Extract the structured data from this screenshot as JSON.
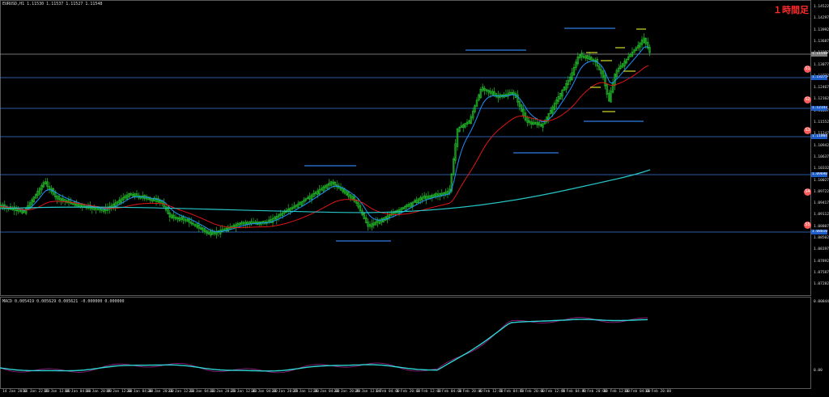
{
  "header": {
    "symbol_info": "EURUSD,H1  1.11530 1.11537 1.11527 1.11548",
    "macd_info": "MACD 0.005419 0.005629 0.005621 -0.000000 0.000000"
  },
  "badge": "１時間足",
  "colors": {
    "candle": "#22c02a",
    "ma_fast": "#1e90ff",
    "ma_mid": "#e01515",
    "ma_slow": "#26c6c6",
    "levels": "#3a78e0",
    "current_line": "#9a9a9a",
    "annotations": "#2f7de6",
    "annotations_yellow": "#d4e02a",
    "macd_main": "#2fd6d6",
    "macd_signal": "#a0208a",
    "circles": "#ff5a5a"
  },
  "circle_markers": [
    "S1",
    "S2",
    "S3",
    "S4",
    "S5"
  ],
  "price_scale": {
    "labels": [
      "1.14522",
      "1.14297",
      "1.13992",
      "1.13687",
      "1.13382",
      "1.13077",
      "1.12772",
      "1.12467",
      "1.12162",
      "1.11857",
      "1.11552",
      "1.11247",
      "1.10942",
      "1.10637",
      "1.10332",
      "1.10027",
      "1.09722",
      "1.09417",
      "1.09112",
      "1.08807",
      "1.08502",
      "1.08197",
      "1.07892",
      "1.07587",
      "1.07282"
    ],
    "current_price": "1.11548",
    "level_boxes": [
      "1.13275",
      "1.12143",
      "1.11004",
      "1.09690",
      "1.08010"
    ],
    "macd_labels": [
      "0.008447",
      "0.00"
    ]
  },
  "time_axis": {
    "labels": [
      "14 Jan 2016",
      "14 Jan 22:00",
      "15 Jan 12:00",
      "18 Jan 04:00",
      "18 Jan 20:00",
      "19 Jan 12:00",
      "20 Jan 04:00",
      "20 Jan 20:00",
      "21 Jan 12:00",
      "22 Jan 04:00",
      "22 Jan 20:00",
      "25 Jan 12:00",
      "26 Jan 04:00",
      "26 Jan 20:00",
      "27 Jan 12:00",
      "28 Jan 04:00",
      "28 Jan 20:00",
      "29 Jan 12:00",
      "1 Feb 04:00",
      "1 Feb 20:00",
      "2 Feb 12:00",
      "3 Feb 04:00",
      "3 Feb 20:00",
      "4 Feb 12:00",
      "5 Feb 04:00",
      "5 Feb 20:00",
      "8 Feb 12:00",
      "9 Feb 04:00",
      "9 Feb 20:00",
      "10 Feb 12:00",
      "11 Feb 04:00",
      "11 Feb 20:00"
    ]
  }
}
